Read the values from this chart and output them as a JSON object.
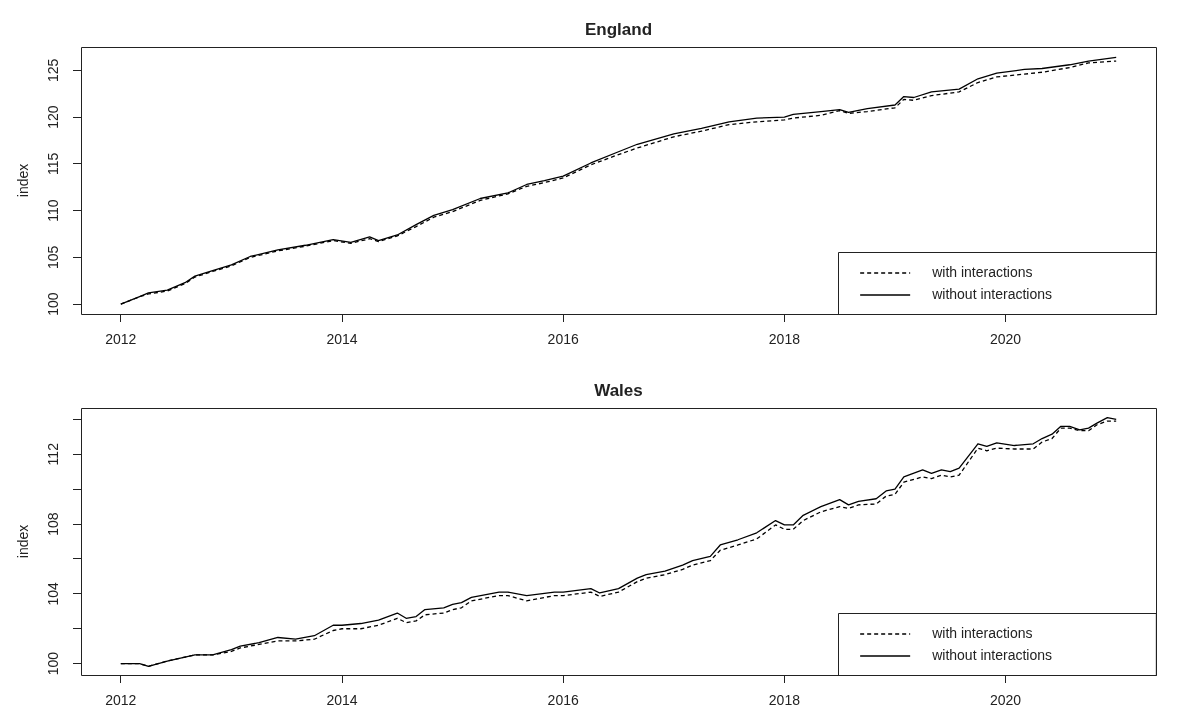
{
  "chart_data": [
    {
      "type": "line",
      "title": "England",
      "ylabel": "index",
      "x": [
        2012.0,
        2012.17,
        2012.25,
        2012.42,
        2012.58,
        2012.67,
        2012.83,
        2013.0,
        2013.17,
        2013.42,
        2013.67,
        2013.92,
        2014.08,
        2014.25,
        2014.33,
        2014.5,
        2014.67,
        2014.83,
        2015.0,
        2015.25,
        2015.5,
        2015.67,
        2015.83,
        2016.0,
        2016.25,
        2016.5,
        2016.67,
        2017.0,
        2017.25,
        2017.5,
        2017.75,
        2018.0,
        2018.08,
        2018.33,
        2018.5,
        2018.58,
        2018.75,
        2019.0,
        2019.08,
        2019.17,
        2019.33,
        2019.58,
        2019.75,
        2019.92,
        2020.17,
        2020.33,
        2020.58,
        2020.75,
        2021.0
      ],
      "series": [
        {
          "name": "with interactions",
          "color": "#000000",
          "line_style": "dashed",
          "values": [
            100.0,
            100.8,
            101.1,
            101.4,
            102.2,
            102.9,
            103.5,
            104.1,
            105.0,
            105.7,
            106.2,
            106.8,
            106.5,
            107.0,
            106.7,
            107.3,
            108.3,
            109.3,
            109.9,
            111.1,
            111.8,
            112.6,
            113.0,
            113.5,
            114.9,
            116.0,
            116.7,
            117.9,
            118.5,
            119.2,
            119.5,
            119.7,
            119.9,
            120.2,
            120.7,
            120.4,
            120.6,
            121.0,
            121.9,
            121.8,
            122.3,
            122.7,
            123.7,
            124.3,
            124.6,
            124.8,
            125.3,
            125.8,
            126.0
          ]
        },
        {
          "name": "without interactions",
          "color": "#000000",
          "line_style": "solid",
          "values": [
            100.0,
            100.8,
            101.2,
            101.5,
            102.3,
            103.0,
            103.6,
            104.2,
            105.1,
            105.8,
            106.3,
            106.9,
            106.6,
            107.2,
            106.8,
            107.4,
            108.5,
            109.5,
            110.1,
            111.3,
            111.9,
            112.8,
            113.2,
            113.7,
            115.1,
            116.3,
            117.1,
            118.2,
            118.8,
            119.5,
            119.9,
            120.0,
            120.3,
            120.6,
            120.8,
            120.5,
            120.9,
            121.3,
            122.2,
            122.1,
            122.7,
            123.0,
            124.1,
            124.7,
            125.1,
            125.2,
            125.6,
            126.0,
            126.4
          ]
        }
      ],
      "xlim": [
        2011.64,
        2021.36
      ],
      "xticks": [
        2012,
        2014,
        2016,
        2018,
        2020
      ],
      "ylim": [
        98.95,
        127.5
      ],
      "yticks": [
        100,
        105,
        110,
        115,
        120,
        125
      ],
      "legend": "bottom right",
      "marker": "none"
    },
    {
      "type": "line",
      "title": "Wales",
      "ylabel": "index",
      "x": [
        2012.0,
        2012.17,
        2012.25,
        2012.42,
        2012.67,
        2012.83,
        2013.0,
        2013.08,
        2013.25,
        2013.42,
        2013.58,
        2013.75,
        2013.92,
        2014.0,
        2014.17,
        2014.33,
        2014.5,
        2014.58,
        2014.67,
        2014.75,
        2014.92,
        2015.0,
        2015.08,
        2015.17,
        2015.42,
        2015.5,
        2015.67,
        2015.92,
        2016.0,
        2016.25,
        2016.33,
        2016.5,
        2016.67,
        2016.75,
        2016.92,
        2017.08,
        2017.17,
        2017.33,
        2017.42,
        2017.58,
        2017.75,
        2017.92,
        2018.0,
        2018.08,
        2018.17,
        2018.33,
        2018.5,
        2018.58,
        2018.67,
        2018.83,
        2018.92,
        2019.0,
        2019.08,
        2019.25,
        2019.33,
        2019.42,
        2019.5,
        2019.58,
        2019.75,
        2019.83,
        2019.92,
        2020.08,
        2020.25,
        2020.33,
        2020.42,
        2020.5,
        2020.58,
        2020.67,
        2020.75,
        2020.83,
        2020.92,
        2021.0
      ],
      "series": [
        {
          "name": "with interactions",
          "color": "#000000",
          "line_style": "dashed",
          "values": [
            100.0,
            100.0,
            99.85,
            100.15,
            100.5,
            100.5,
            100.7,
            100.9,
            101.1,
            101.3,
            101.3,
            101.4,
            101.9,
            102.0,
            102.0,
            102.2,
            102.6,
            102.35,
            102.45,
            102.8,
            102.9,
            103.1,
            103.2,
            103.6,
            103.9,
            103.9,
            103.6,
            103.9,
            103.9,
            104.1,
            103.85,
            104.1,
            104.7,
            104.9,
            105.1,
            105.4,
            105.65,
            105.9,
            106.5,
            106.8,
            107.15,
            107.95,
            107.7,
            107.7,
            108.2,
            108.7,
            109.0,
            108.9,
            109.1,
            109.15,
            109.6,
            109.7,
            110.4,
            110.7,
            110.6,
            110.8,
            110.7,
            110.8,
            112.35,
            112.2,
            112.35,
            112.3,
            112.3,
            112.7,
            112.9,
            113.5,
            113.5,
            113.35,
            113.35,
            113.7,
            113.9,
            113.9
          ]
        },
        {
          "name": "without interactions",
          "color": "#000000",
          "line_style": "solid",
          "values": [
            100.0,
            100.0,
            99.85,
            100.15,
            100.5,
            100.5,
            100.8,
            101.0,
            101.2,
            101.5,
            101.4,
            101.6,
            102.2,
            102.2,
            102.3,
            102.5,
            102.9,
            102.6,
            102.7,
            103.1,
            103.2,
            103.4,
            103.5,
            103.8,
            104.1,
            104.1,
            103.9,
            104.1,
            104.1,
            104.3,
            104.05,
            104.3,
            104.9,
            105.1,
            105.3,
            105.65,
            105.9,
            106.15,
            106.8,
            107.1,
            107.5,
            108.2,
            107.95,
            107.95,
            108.5,
            109.0,
            109.4,
            109.1,
            109.3,
            109.45,
            109.9,
            110.0,
            110.7,
            111.1,
            110.9,
            111.1,
            111.0,
            111.2,
            112.6,
            112.45,
            112.65,
            112.5,
            112.6,
            112.9,
            113.15,
            113.6,
            113.6,
            113.4,
            113.5,
            113.8,
            114.1,
            114.0
          ]
        }
      ],
      "xlim": [
        2011.64,
        2021.36
      ],
      "xticks": [
        2012,
        2014,
        2016,
        2018,
        2020
      ],
      "ylim": [
        99.35,
        114.65
      ],
      "yticks": [
        100,
        {
          "value": 102,
          "label": null
        },
        104,
        {
          "value": 106,
          "label": null
        },
        108,
        {
          "value": 110,
          "label": null
        },
        112,
        {
          "value": 114,
          "label": null
        }
      ],
      "legend": "bottom right",
      "marker": "none"
    }
  ]
}
